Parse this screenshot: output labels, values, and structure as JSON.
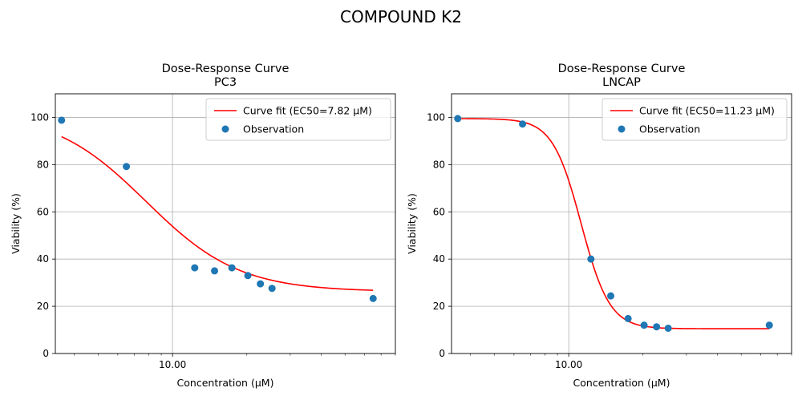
{
  "suptitle": "COMPOUND K2",
  "chart_data": [
    {
      "type": "scatter",
      "title": "Dose-Response Curve",
      "subtitle": "PC3",
      "xlabel": "Concentration (µM)",
      "ylabel": "Viability (%)",
      "xscale": "log",
      "xlim": [
        3.35,
        80
      ],
      "ylim": [
        0,
        110
      ],
      "yticks": [
        0,
        20,
        40,
        60,
        80,
        100
      ],
      "xticks": [
        {
          "value": 10,
          "label": "10.00"
        }
      ],
      "grid": true,
      "legend_position": "top-right",
      "curve": {
        "name": "Curve fit (EC50=7.82 µM)",
        "color": "#ff0000",
        "bottom": 26.2,
        "top": 102.5,
        "ec50": 7.82,
        "hill": 2.3,
        "x_range": [
          3.55,
          65
        ]
      },
      "observations": {
        "name": "Observation",
        "color": "#1f77b4",
        "x": [
          3.55,
          6.5,
          12.3,
          14.8,
          17.4,
          20.2,
          22.7,
          25.3,
          65
        ],
        "y": [
          98.8,
          79.2,
          36.3,
          35.0,
          36.3,
          33.0,
          29.5,
          27.6,
          23.3
        ]
      }
    },
    {
      "type": "scatter",
      "title": "Dose-Response Curve",
      "subtitle": "LNCAP",
      "xlabel": "Concentration (µM)",
      "ylabel": "Viability (%)",
      "xscale": "log",
      "xlim": [
        3.35,
        80
      ],
      "ylim": [
        0,
        110
      ],
      "yticks": [
        0,
        20,
        40,
        60,
        80,
        100
      ],
      "xticks": [
        {
          "value": 10,
          "label": "10.00"
        }
      ],
      "grid": true,
      "legend_position": "top-right",
      "curve": {
        "name": "Curve fit (EC50=11.23 µM)",
        "color": "#ff0000",
        "bottom": 10.5,
        "top": 99.5,
        "ec50": 11.23,
        "hill": 7.5,
        "x_range": [
          3.55,
          65
        ]
      },
      "observations": {
        "name": "Observation",
        "color": "#1f77b4",
        "x": [
          3.55,
          6.5,
          12.3,
          14.8,
          17.4,
          20.2,
          22.7,
          25.3,
          65
        ],
        "y": [
          99.5,
          97.2,
          40.0,
          24.4,
          14.8,
          12.0,
          11.3,
          10.7,
          12.0
        ]
      }
    }
  ]
}
